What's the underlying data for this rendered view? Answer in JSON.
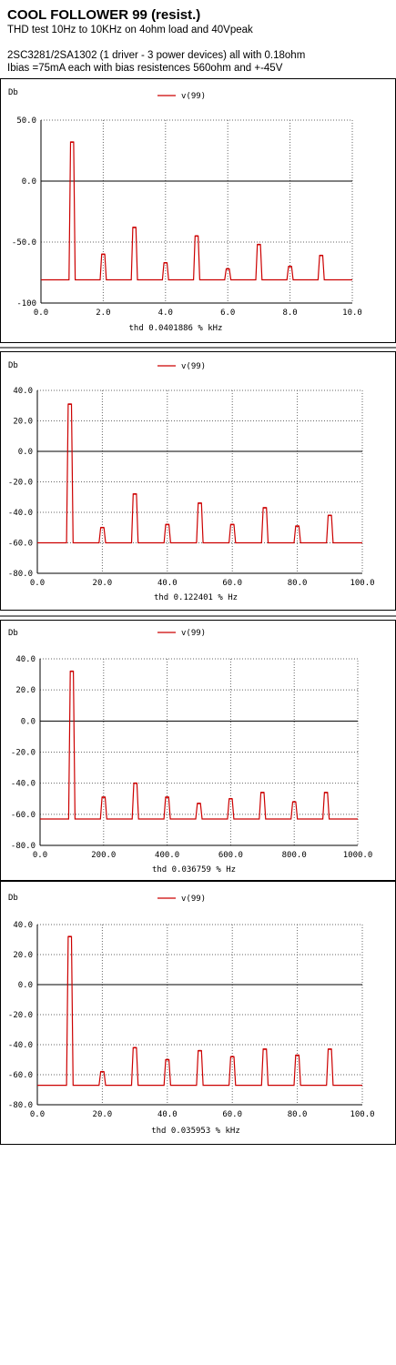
{
  "header": {
    "title": "COOL FOLLOWER 99 (resist.)",
    "subtitle": "THD test 10Hz to 10KHz on 4ohm load and 40Vpeak",
    "line1": "2SC3281/2SA1302 (1 driver - 3 power devices) all with 0.18ohm",
    "line2": "Ibias =75mA each with bias resistences 560ohm and +-45V"
  },
  "colors": {
    "trace": "#cc0000",
    "grid": "#666666",
    "zero_line": "#000000"
  },
  "chart_data": [
    {
      "type": "line",
      "ylabel": "Db",
      "legend": "v(99)",
      "xlabel": "thd 0.0401886 %   kHz",
      "xlim": [
        0,
        10
      ],
      "ylim": [
        -100,
        50
      ],
      "xticks": [
        0,
        2,
        4,
        6,
        8,
        10
      ],
      "xtick_labels": [
        "0.0",
        "2.0",
        "4.0",
        "6.0",
        "8.0",
        "10.0"
      ],
      "yticks": [
        -100,
        -50,
        0,
        50
      ],
      "ytick_labels": [
        "-100",
        "-50.0",
        "0.0",
        "50.0"
      ],
      "floor": -81,
      "harmonics": {
        "x": [
          1,
          2,
          3,
          4,
          5,
          6,
          7,
          8,
          9
        ],
        "y": [
          32,
          -60,
          -38,
          -67,
          -45,
          -72,
          -52,
          -70,
          -61
        ]
      }
    },
    {
      "type": "line",
      "ylabel": "Db",
      "legend": "v(99)",
      "xlabel": "thd 0.122401 %    Hz",
      "xlim": [
        0,
        100
      ],
      "ylim": [
        -80,
        40
      ],
      "xticks": [
        0,
        20,
        40,
        60,
        80,
        100
      ],
      "xtick_labels": [
        "0.0",
        "20.0",
        "40.0",
        "60.0",
        "80.0",
        "100.0"
      ],
      "yticks": [
        -80,
        -60,
        -40,
        -20,
        0,
        20,
        40
      ],
      "ytick_labels": [
        "-80.0",
        "-60.0",
        "-40.0",
        "-20.0",
        "0.0",
        "20.0",
        "40.0"
      ],
      "floor": -60,
      "harmonics": {
        "x": [
          10,
          20,
          30,
          40,
          50,
          60,
          70,
          80,
          90
        ],
        "y": [
          31,
          -50,
          -28,
          -48,
          -34,
          -48,
          -37,
          -49,
          -42
        ]
      }
    },
    {
      "type": "line",
      "ylabel": "Db",
      "legend": "v(99)",
      "xlabel": "thd 0.036759 %    Hz",
      "xlim": [
        0,
        1000
      ],
      "ylim": [
        -80,
        40
      ],
      "xticks": [
        0,
        200,
        400,
        600,
        800,
        1000
      ],
      "xtick_labels": [
        "0.0",
        "200.0",
        "400.0",
        "600.0",
        "800.0",
        "1000.0"
      ],
      "yticks": [
        -80,
        -60,
        -40,
        -20,
        0,
        20,
        40
      ],
      "ytick_labels": [
        "-80.0",
        "-60.0",
        "-40.0",
        "-20.0",
        "0.0",
        "20.0",
        "40.0"
      ],
      "floor": -63,
      "harmonics": {
        "x": [
          100,
          200,
          300,
          400,
          500,
          600,
          700,
          800,
          900
        ],
        "y": [
          32,
          -49,
          -40,
          -49,
          -53,
          -50,
          -46,
          -52,
          -46
        ]
      }
    },
    {
      "type": "line",
      "ylabel": "Db",
      "legend": "v(99)",
      "xlabel": "thd 0.035953 %    kHz",
      "xlim": [
        0,
        100
      ],
      "ylim": [
        -80,
        40
      ],
      "xticks": [
        0,
        20,
        40,
        60,
        80,
        100
      ],
      "xtick_labels": [
        "0.0",
        "20.0",
        "40.0",
        "60.0",
        "80.0",
        "100.0"
      ],
      "yticks": [
        -80,
        -60,
        -40,
        -20,
        0,
        20,
        40
      ],
      "ytick_labels": [
        "-80.0",
        "-60.0",
        "-40.0",
        "-20.0",
        "0.0",
        "20.0",
        "40.0"
      ],
      "floor": -67,
      "harmonics": {
        "x": [
          10,
          20,
          30,
          40,
          50,
          60,
          70,
          80,
          90
        ],
        "y": [
          32,
          -58,
          -42,
          -50,
          -44,
          -48,
          -43,
          -47,
          -43
        ]
      }
    }
  ]
}
